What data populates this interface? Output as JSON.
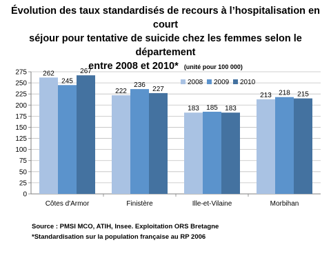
{
  "chart_data": {
    "type": "bar",
    "title_line1": "Évolution des taux standardisés de recours à l’hospitalisation en court",
    "title_line2": "séjour pour tentative de suicide chez les femmes selon le département",
    "title_line3": "entre 2008 et 2010*",
    "unit_note": "(unité pour 100 000)",
    "categories": [
      "Côtes d'Armor",
      "Finistère",
      "Ille-et-Vilaine",
      "Morbihan"
    ],
    "series": [
      {
        "name": "2008",
        "values": [
          262,
          222,
          183,
          213
        ],
        "color": "#a9c2e3"
      },
      {
        "name": "2009",
        "values": [
          245,
          236,
          185,
          218
        ],
        "color": "#5b93cc"
      },
      {
        "name": "2010",
        "values": [
          267,
          227,
          183,
          215
        ],
        "color": "#4472a0"
      }
    ],
    "ylim": [
      0,
      275
    ],
    "yticks": [
      0,
      25,
      50,
      75,
      100,
      125,
      150,
      175,
      200,
      225,
      250,
      275
    ],
    "grid": true,
    "legend_position": "top-right",
    "source": "Source : PMSI MCO, ATIH, Insee. Exploitation ORS Bretagne",
    "footnote": "*Standardisation sur la population française au RP 2006"
  }
}
